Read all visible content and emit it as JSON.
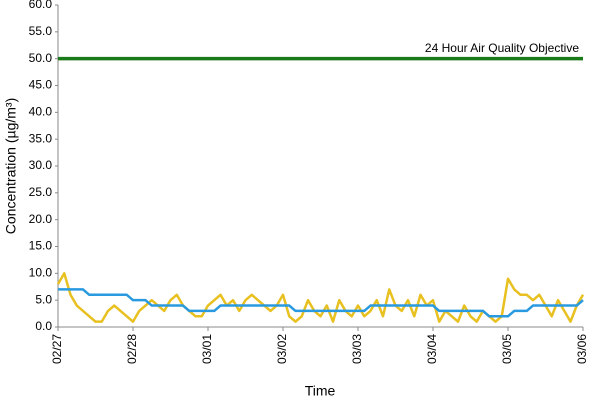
{
  "chart_data": {
    "type": "line",
    "x_label": "Time",
    "y_label": "Concentration (µg/m³)",
    "x": [
      0,
      2,
      4,
      6,
      8,
      10,
      12,
      14,
      16,
      18,
      20,
      22,
      24,
      26,
      28,
      30,
      32,
      34,
      36,
      38,
      40,
      42,
      44,
      46,
      48,
      50,
      52,
      54,
      56,
      58,
      60,
      62,
      64,
      66,
      68,
      70,
      72,
      74,
      76,
      78,
      80,
      82,
      84,
      86,
      88,
      90,
      92,
      94,
      96,
      98,
      100,
      102,
      104,
      106,
      108,
      110,
      112,
      114,
      116,
      118,
      120,
      122,
      124,
      126,
      128,
      130,
      132,
      134,
      136,
      138,
      140,
      142,
      144,
      146,
      148,
      150,
      152,
      154,
      156,
      158,
      160,
      162,
      164,
      166,
      168
    ],
    "series": [
      {
        "color": "#e8c020",
        "values": [
          8,
          10,
          6,
          4,
          3,
          2,
          1,
          1,
          3,
          4,
          3,
          2,
          1,
          3,
          4,
          5,
          4,
          3,
          5,
          6,
          4,
          3,
          2,
          2,
          4,
          5,
          6,
          4,
          5,
          3,
          5,
          6,
          5,
          4,
          3,
          4,
          6,
          2,
          1,
          2,
          5,
          3,
          2,
          4,
          1,
          5,
          3,
          2,
          4,
          2,
          3,
          5,
          2,
          7,
          4,
          3,
          5,
          2,
          6,
          4,
          5,
          1,
          3,
          2,
          1,
          4,
          2,
          1,
          3,
          2,
          1,
          2,
          9,
          7,
          6,
          6,
          5,
          6,
          4,
          2,
          5,
          3,
          1,
          4,
          6
        ]
      },
      {
        "color": "#2a9ae0",
        "values": [
          7,
          7,
          7,
          7,
          7,
          6,
          6,
          6,
          6,
          6,
          6,
          6,
          5,
          5,
          5,
          4,
          4,
          4,
          4,
          4,
          4,
          3,
          3,
          3,
          3,
          3,
          4,
          4,
          4,
          4,
          4,
          4,
          4,
          4,
          4,
          4,
          4,
          4,
          3,
          3,
          3,
          3,
          3,
          3,
          3,
          3,
          3,
          3,
          3,
          3,
          4,
          4,
          4,
          4,
          4,
          4,
          4,
          4,
          4,
          4,
          4,
          3,
          3,
          3,
          3,
          3,
          3,
          3,
          3,
          2,
          2,
          2,
          2,
          3,
          3,
          3,
          4,
          4,
          4,
          4,
          4,
          4,
          4,
          4,
          5
        ]
      }
    ],
    "threshold": {
      "value": 50,
      "label": "24 Hour Air Quality Objective",
      "color": "#1a7a1a"
    },
    "xlim": [
      0,
      168
    ],
    "xticks": [
      {
        "value": 0,
        "label": "02/27"
      },
      {
        "value": 24,
        "label": "02/28"
      },
      {
        "value": 48,
        "label": "03/01"
      },
      {
        "value": 72,
        "label": "03/02"
      },
      {
        "value": 96,
        "label": "03/03"
      },
      {
        "value": 120,
        "label": "03/04"
      },
      {
        "value": 144,
        "label": "03/05"
      },
      {
        "value": 168,
        "label": "03/06"
      }
    ],
    "ylim": [
      0,
      60
    ],
    "yticks": [
      {
        "value": 0,
        "label": "0.0"
      },
      {
        "value": 5,
        "label": "5.0"
      },
      {
        "value": 10,
        "label": "10.0"
      },
      {
        "value": 15,
        "label": "15.0"
      },
      {
        "value": 20,
        "label": "20.0"
      },
      {
        "value": 25,
        "label": "25.0"
      },
      {
        "value": 30,
        "label": "30.0"
      },
      {
        "value": 35,
        "label": "35.0"
      },
      {
        "value": 40,
        "label": "40.0"
      },
      {
        "value": 45,
        "label": "45.0"
      },
      {
        "value": 50,
        "label": "50.0"
      },
      {
        "value": 55,
        "label": "55.0"
      },
      {
        "value": 60,
        "label": "60.0"
      }
    ]
  }
}
